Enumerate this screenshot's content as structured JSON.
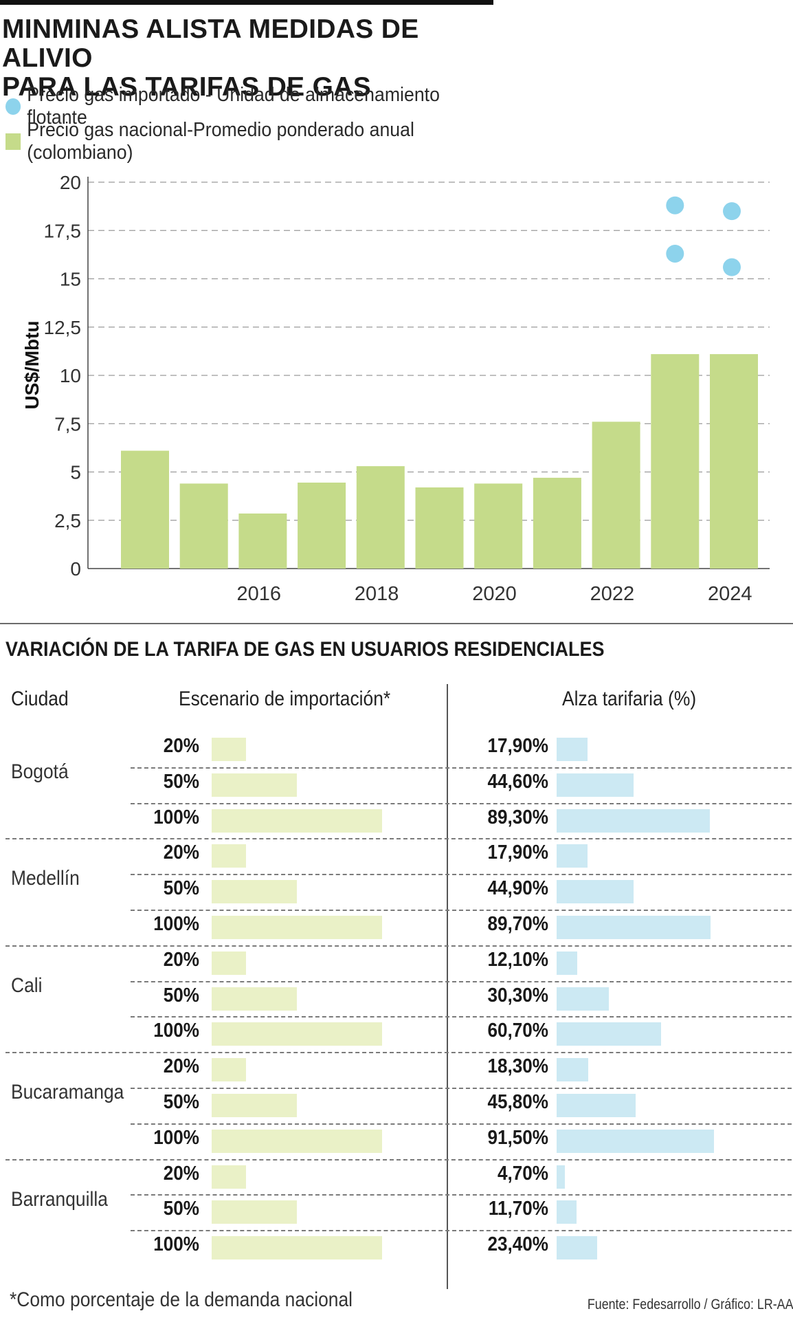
{
  "title_line1": "MINMINAS ALISTA MEDIDAS DE ALIVIO",
  "title_line2": "PARA LAS TARIFAS DE GAS",
  "legend": {
    "imported_label": "Precio gas importado - Unidad  de almacenamiento flotante",
    "national_label": "Precio gas nacional-Promedio ponderado anual (colombiano)"
  },
  "colors": {
    "imported": "#8dd3ec",
    "national": "#c5db8a",
    "scenario_bar": "#eaf1c7",
    "increase_bar": "#cce9f3"
  },
  "chart_data": {
    "type": "bar",
    "ylabel": "US$/Mbtu",
    "ylim": [
      0,
      20
    ],
    "yticks": [
      "0",
      "2,5",
      "5",
      "7,5",
      "10",
      "12,5",
      "15",
      "17,5",
      "20"
    ],
    "xtick_labels": [
      "2016",
      "2018",
      "2020",
      "2022",
      "2024"
    ],
    "grid": true,
    "series": [
      {
        "name": "Precio gas nacional-Promedio ponderado anual (colombiano)",
        "kind": "bar",
        "x": [
          2015,
          2016,
          2017,
          2018,
          2019,
          2020,
          2021,
          2022,
          2023,
          2024,
          2025
        ],
        "values": [
          6.1,
          4.4,
          2.85,
          4.45,
          5.3,
          4.2,
          4.4,
          4.7,
          7.6,
          11.1,
          11.1
        ]
      },
      {
        "name": "Precio gas importado - Unidad  de almacenamiento flotante",
        "kind": "scatter",
        "points": [
          {
            "x": 2024,
            "y": 18.8
          },
          {
            "x": 2024,
            "y": 16.3
          },
          {
            "x": 2025,
            "y": 18.5
          },
          {
            "x": 2025,
            "y": 15.6
          }
        ]
      }
    ]
  },
  "table": {
    "title": "VARIACIÓN DE LA TARIFA DE GAS EN USUARIOS RESIDENCIALES",
    "col_city": "Ciudad",
    "col_scenario": "Escenario de importación*",
    "col_increase": "Alza tarifaria (%)",
    "cities": [
      {
        "name": "Bogotá",
        "rows": [
          {
            "scenario": "20%",
            "scenario_value": 20,
            "increase": "17,90%",
            "increase_value": 17.9
          },
          {
            "scenario": "50%",
            "scenario_value": 50,
            "increase": "44,60%",
            "increase_value": 44.6
          },
          {
            "scenario": "100%",
            "scenario_value": 100,
            "increase": "89,30%",
            "increase_value": 89.3
          }
        ]
      },
      {
        "name": "Medellín",
        "rows": [
          {
            "scenario": "20%",
            "scenario_value": 20,
            "increase": "17,90%",
            "increase_value": 17.9
          },
          {
            "scenario": "50%",
            "scenario_value": 50,
            "increase": "44,90%",
            "increase_value": 44.9
          },
          {
            "scenario": "100%",
            "scenario_value": 100,
            "increase": "89,70%",
            "increase_value": 89.7
          }
        ]
      },
      {
        "name": "Cali",
        "rows": [
          {
            "scenario": "20%",
            "scenario_value": 20,
            "increase": "12,10%",
            "increase_value": 12.1
          },
          {
            "scenario": "50%",
            "scenario_value": 50,
            "increase": "30,30%",
            "increase_value": 30.3
          },
          {
            "scenario": "100%",
            "scenario_value": 100,
            "increase": "60,70%",
            "increase_value": 60.7
          }
        ]
      },
      {
        "name": "Bucaramanga",
        "rows": [
          {
            "scenario": "20%",
            "scenario_value": 20,
            "increase": "18,30%",
            "increase_value": 18.3
          },
          {
            "scenario": "50%",
            "scenario_value": 50,
            "increase": "45,80%",
            "increase_value": 45.8
          },
          {
            "scenario": "100%",
            "scenario_value": 100,
            "increase": "91,50%",
            "increase_value": 91.5
          }
        ]
      },
      {
        "name": "Barranquilla",
        "rows": [
          {
            "scenario": "20%",
            "scenario_value": 20,
            "increase": "4,70%",
            "increase_value": 4.7
          },
          {
            "scenario": "50%",
            "scenario_value": 50,
            "increase": "11,70%",
            "increase_value": 11.7
          },
          {
            "scenario": "100%",
            "scenario_value": 100,
            "increase": "23,40%",
            "increase_value": 23.4
          }
        ]
      }
    ]
  },
  "footnote": "*Como porcentaje de la demanda nacional",
  "source": "Fuente: Fedesarrollo / Gráfico: LR-AA"
}
